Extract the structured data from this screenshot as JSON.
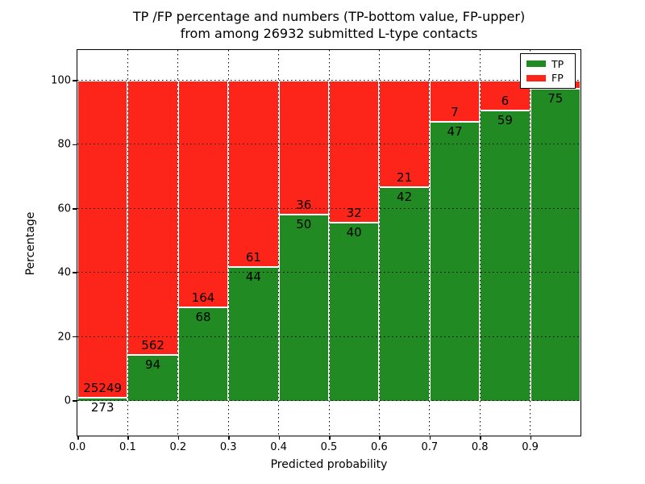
{
  "title": {
    "line1": "TP /FP percentage and numbers (TP-bottom value, FP-upper)",
    "line2": "from among 26932 submitted L-type contacts"
  },
  "axes": {
    "xlabel": "Predicted probability",
    "ylabel": "Percentage"
  },
  "legend": {
    "items": [
      {
        "label": "TP",
        "color": "#228a22"
      },
      {
        "label": "FP",
        "color": "#fd2419"
      }
    ]
  },
  "chart_data": {
    "type": "bar",
    "stacked": true,
    "orientation": "vertical",
    "title": "TP /FP percentage and numbers (TP-bottom value, FP-upper) from among 26932 submitted L-type contacts",
    "xlabel": "Predicted probability",
    "ylabel": "Percentage",
    "xlim": [
      0.0,
      1.0
    ],
    "ylim": [
      -11,
      110
    ],
    "grid": true,
    "legend_position": "upper right",
    "bin_width": 0.1,
    "bin_starts": [
      0.0,
      0.1,
      0.2,
      0.3,
      0.4,
      0.5,
      0.6,
      0.7,
      0.8,
      0.9
    ],
    "x_tick_labels": [
      "0.0",
      "0.1",
      "0.2",
      "0.3",
      "0.4",
      "0.5",
      "0.6",
      "0.7",
      "0.8",
      "0.9"
    ],
    "y_tick_values": [
      0,
      20,
      40,
      60,
      80,
      100
    ],
    "y_tick_labels": [
      "0",
      "20",
      "40",
      "60",
      "80",
      "100"
    ],
    "series": [
      {
        "name": "TP",
        "color": "#228a22",
        "counts": [
          273,
          94,
          68,
          44,
          50,
          40,
          42,
          47,
          59,
          75
        ],
        "percent": [
          1.07,
          14.33,
          29.31,
          41.9,
          58.14,
          55.56,
          66.67,
          87.04,
          90.77,
          97.4
        ],
        "labels": [
          "273",
          "94",
          "68",
          "44",
          "50",
          "40",
          "42",
          "47",
          "59",
          "75"
        ]
      },
      {
        "name": "FP",
        "color": "#fd2419",
        "counts": [
          25249,
          562,
          164,
          61,
          36,
          32,
          21,
          7,
          6,
          null
        ],
        "percent": [
          98.93,
          85.67,
          70.69,
          58.1,
          41.86,
          44.44,
          33.33,
          12.96,
          9.23,
          2.6
        ],
        "labels": [
          "25249",
          "562",
          "164",
          "61",
          "36",
          "32",
          "21",
          "7",
          "6",
          ""
        ]
      }
    ]
  }
}
